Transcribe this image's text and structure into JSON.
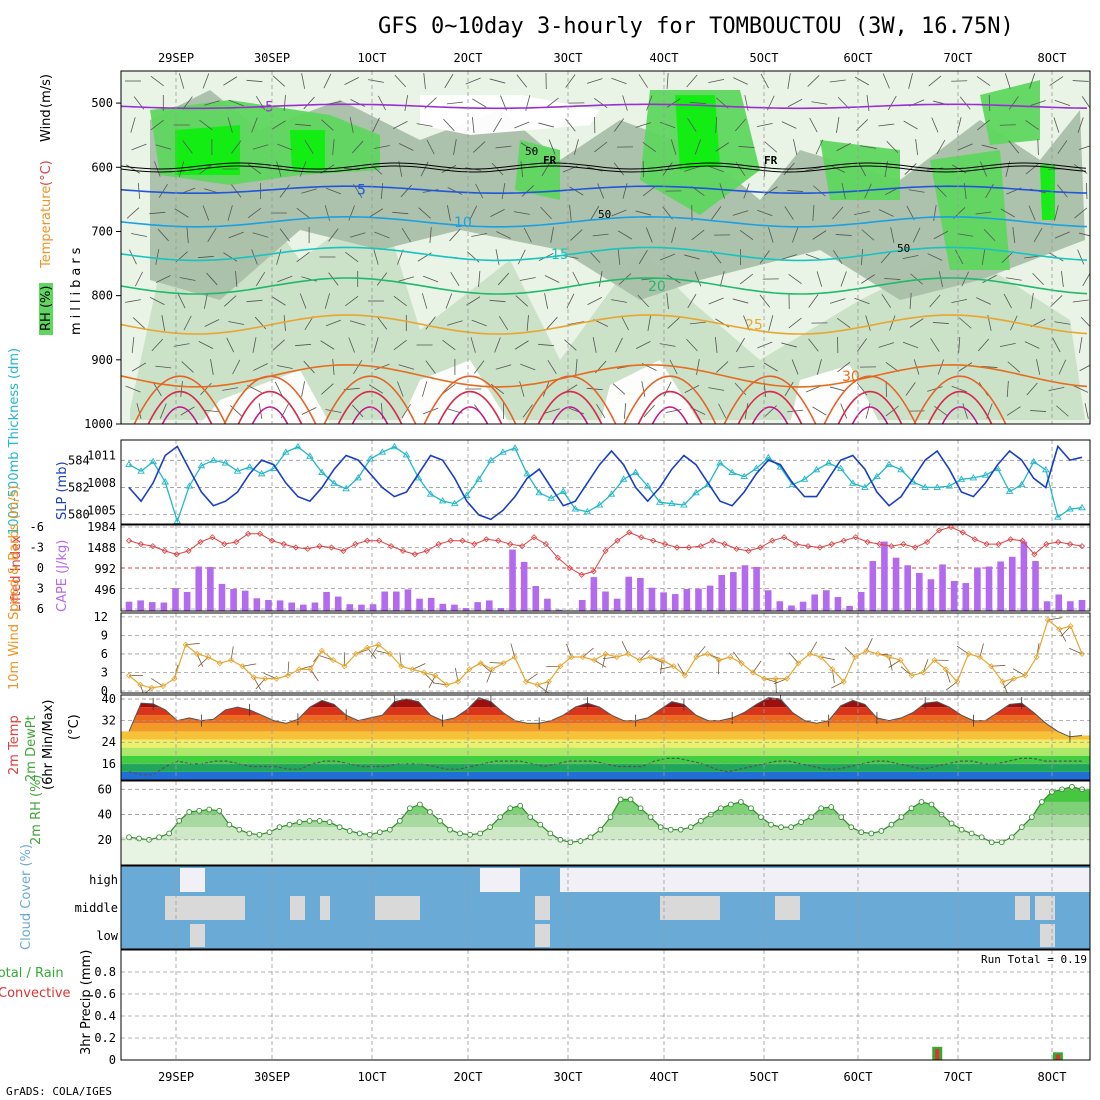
{
  "title": "GFS 0~10day 3-hourly for TOMBOUCTOU (3W, 16.75N)",
  "credit": "GrADS: COLA/IGES",
  "dates": [
    "29SEP",
    "30SEP",
    "1OCT",
    "2OCT",
    "3OCT",
    "4OCT",
    "5OCT",
    "6OCT",
    "7OCT",
    "8OCT"
  ],
  "date_labels_display": [
    "29SEP",
    "30SEP",
    "1OCT",
    "2OCT",
    "3OCT",
    "4OCT",
    "5OCT",
    "6OCT",
    "7OCT",
    "8OCT"
  ],
  "colors": {
    "rh_light": "#e9f4e6",
    "rh_mid": "#c9dfc6",
    "rh_grey": "#a9bfa9",
    "rh_green": "#5fd65f",
    "rh_bright": "#10ee10",
    "cyan": "#22b8c8",
    "blue": "#1a3fc7",
    "purple": "#b36aef",
    "red": "#e04040",
    "orange": "#ee9522",
    "green_rh": "#41a63a",
    "cloud_bg": "#6aaad6",
    "cloud_white": "#f2f0f7",
    "cloud_light": "#d9d9d9",
    "precip_green": "#33aa33",
    "precip_red": "#e03030"
  },
  "chart_data": [
    {
      "name": "upper-air",
      "type": "contour",
      "ylabel_parts": [
        "RH (%)",
        "Temperature",
        "(°C)",
        "Wind",
        "(m/s)"
      ],
      "axis_label": "millibars",
      "ylim": [
        1000,
        450
      ],
      "yticks": [
        500,
        600,
        700,
        800,
        900,
        1000
      ],
      "isotherms": [
        {
          "label": "-5",
          "level": 505
        },
        {
          "label": "5",
          "level": 635
        },
        {
          "label": "10",
          "level": 685
        },
        {
          "label": "15",
          "level": 735
        },
        {
          "label": "20",
          "level": 785
        },
        {
          "label": "25",
          "level": 845
        },
        {
          "label": "30",
          "level": 925
        }
      ],
      "freezing_level_label": "FR",
      "freezing_level_mb": 598,
      "rh_labels": [
        "50",
        "50",
        "50"
      ]
    },
    {
      "name": "thickness-slp",
      "type": "line",
      "ylabel_left": "1000-500mb Thickness (dm)",
      "ylabel_right": "SLP (mb)",
      "left_ticks": [
        580,
        582,
        584
      ],
      "right_ticks": [
        1005,
        1008,
        1011
      ],
      "left_ylim": [
        579.3,
        585.5
      ],
      "right_ylim": [
        1003.5,
        1012.7
      ],
      "series": [
        {
          "name": "Thickness",
          "values": [
            583.7,
            583.2,
            583.9,
            582.4,
            579.5,
            582.1,
            583.6,
            584.0,
            583.8,
            583.2,
            583.5,
            583.0,
            583.4,
            584.6,
            585.0,
            584.3,
            583.1,
            582.3,
            581.9,
            582.7,
            584.1,
            584.6,
            585.0,
            584.4,
            582.7,
            581.5,
            581.0,
            580.8,
            581.4,
            582.6,
            584.0,
            584.6,
            584.9,
            583.0,
            581.6,
            581.2,
            581.7,
            580.4,
            580.2,
            580.7,
            581.5,
            582.6,
            583.1,
            582.1,
            580.9,
            580.8,
            580.7,
            581.6,
            582.2,
            583.8,
            583.1,
            582.8,
            583.4,
            584.2,
            583.5,
            582.2,
            582.6,
            583.3,
            583.8,
            583.4,
            582.3,
            582.0,
            582.8,
            583.7,
            583.3,
            582.4,
            582.0,
            582.0,
            582.1,
            582.6,
            582.7,
            582.9,
            583.4,
            581.7,
            582.2,
            583.9,
            583.3,
            579.8,
            580.4,
            580.5
          ]
        },
        {
          "name": "SLP",
          "values": [
            1007.5,
            1006.0,
            1008.0,
            1011.0,
            1012.0,
            1009.5,
            1007.0,
            1005.5,
            1006.0,
            1007.0,
            1009.0,
            1010.5,
            1010.0,
            1008.0,
            1006.5,
            1006.0,
            1007.5,
            1009.5,
            1011.0,
            1010.5,
            1009.0,
            1007.5,
            1006.5,
            1007.0,
            1009.0,
            1011.0,
            1010.5,
            1008.5,
            1006.0,
            1004.5,
            1004.0,
            1005.0,
            1006.5,
            1008.5,
            1009.5,
            1007.5,
            1005.5,
            1006.0,
            1008.0,
            1010.0,
            1011.5,
            1010.0,
            1007.5,
            1006.0,
            1007.5,
            1009.5,
            1011.0,
            1010.0,
            1008.0,
            1006.0,
            1005.5,
            1007.0,
            1009.0,
            1010.5,
            1010.0,
            1008.0,
            1006.5,
            1006.5,
            1008.5,
            1010.5,
            1011.0,
            1009.5,
            1007.0,
            1005.5,
            1006.5,
            1008.5,
            1010.5,
            1011.5,
            1009.5,
            1007.0,
            1006.5,
            1008.0,
            1010.0,
            1011.5,
            1010.5,
            1008.5,
            1007.5,
            1012.0,
            1010.5,
            1010.8
          ]
        }
      ]
    },
    {
      "name": "lifted-index-cape",
      "type": "line+bar",
      "ylabel_left": "Lifted Index",
      "ylabel_right": "CAPE (J/kg)",
      "left_ticks": [
        -6,
        -3,
        0,
        3,
        6
      ],
      "right_ticks": [
        496,
        992,
        1488,
        1984
      ],
      "left_ylim": [
        6,
        -6
      ],
      "right_ylim": [
        0,
        1984
      ],
      "series": [
        {
          "name": "Lifted Index",
          "values": [
            -4.0,
            -3.5,
            -3.2,
            -2.5,
            -2.0,
            -2.5,
            -3.8,
            -4.5,
            -3.5,
            -3.8,
            -5.0,
            -5.0,
            -4.0,
            -3.5,
            -3.0,
            -2.8,
            -3.2,
            -3.0,
            -2.5,
            -3.5,
            -4.0,
            -4.0,
            -3.2,
            -2.5,
            -2.0,
            -2.5,
            -3.5,
            -4.0,
            -4.0,
            -3.5,
            -4.2,
            -4.0,
            -3.5,
            -3.2,
            -4.5,
            -3.5,
            -1.5,
            0.0,
            1.0,
            0.5,
            -2.5,
            -4.0,
            -5.2,
            -4.5,
            -4.0,
            -3.5,
            -3.0,
            -3.0,
            -3.2,
            -4.0,
            -3.5,
            -2.8,
            -2.5,
            -3.0,
            -4.0,
            -4.5,
            -3.5,
            -3.2,
            -3.0,
            -3.5,
            -4.0,
            -4.5,
            -3.8,
            -3.5,
            -3.2,
            -3.5,
            -3.0,
            -3.8,
            -5.5,
            -6.0,
            -5.2,
            -4.2,
            -3.5,
            -3.5,
            -4.2,
            -4.0,
            -2.0,
            -3.5,
            -3.8,
            -3.5,
            -3.2
          ]
        },
        {
          "name": "CAPE",
          "values": [
            220,
            250,
            210,
            200,
            540,
            450,
            1050,
            1040,
            640,
            520,
            480,
            300,
            260,
            250,
            200,
            150,
            200,
            450,
            340,
            160,
            150,
            160,
            460,
            460,
            510,
            290,
            310,
            170,
            150,
            70,
            210,
            250,
            70,
            1450,
            1160,
            590,
            290,
            30,
            10,
            260,
            800,
            460,
            290,
            810,
            780,
            550,
            440,
            400,
            520,
            530,
            600,
            850,
            920,
            1080,
            1040,
            490,
            230,
            130,
            220,
            390,
            490,
            330,
            120,
            450,
            1180,
            1640,
            1260,
            1080,
            900,
            750,
            1100,
            710,
            660,
            1030,
            1050,
            1170,
            1280,
            1640,
            1180,
            230,
            390,
            230,
            260
          ]
        }
      ]
    },
    {
      "name": "wind-10m",
      "type": "line",
      "ylabel": "10m Wind Speed & Barbs (m/s)",
      "ticks": [
        0,
        3,
        6,
        9,
        12
      ],
      "ylim": [
        0,
        12.3
      ],
      "values": [
        2.5,
        1.0,
        0.5,
        0.8,
        2.0,
        7.5,
        6.0,
        5.5,
        4.5,
        5.0,
        4.0,
        2.2,
        2.0,
        2.0,
        2.5,
        3.5,
        3.5,
        6.5,
        5.0,
        4.0,
        6.0,
        7.0,
        7.5,
        6.0,
        4.0,
        3.5,
        3.0,
        2.5,
        1.0,
        1.5,
        3.5,
        4.5,
        3.5,
        4.5,
        5.5,
        1.5,
        1.0,
        1.5,
        4.0,
        5.5,
        5.5,
        5.0,
        6.0,
        5.5,
        6.0,
        5.0,
        5.5,
        5.0,
        4.0,
        2.5,
        5.5,
        6.0,
        5.0,
        5.5,
        4.5,
        3.0,
        2.0,
        2.0,
        2.0,
        4.5,
        6.0,
        5.5,
        3.5,
        1.5,
        5.5,
        6.5,
        6.0,
        5.5,
        5.0,
        2.5,
        3.0,
        5.0,
        3.5,
        1.5,
        6.0,
        5.5,
        4.0,
        1.5,
        2.0,
        2.5,
        5.5,
        11.5,
        10.0,
        10.5,
        6.0
      ]
    },
    {
      "name": "temperature-dewpoint",
      "type": "area",
      "ylabel_parts": [
        "2m Temp",
        "2m DewPt",
        "(6hr Min/Max)",
        "(°C)"
      ],
      "ticks": [
        16,
        24,
        32,
        40
      ],
      "ylim": [
        10,
        41.5
      ],
      "temp": [
        28,
        38.5,
        38.2,
        36,
        32,
        33,
        32,
        32.5,
        36,
        37,
        36,
        34,
        32,
        31,
        32.5,
        37,
        39.5,
        38,
        34,
        32,
        33,
        34,
        39,
        40,
        39,
        34,
        32,
        33,
        36,
        40.5,
        39,
        35,
        32,
        31,
        31,
        32,
        34,
        37,
        38.5,
        37,
        34,
        32,
        32,
        33,
        36,
        39,
        38,
        34,
        32,
        32,
        33,
        35,
        38,
        40.5,
        40,
        35,
        32,
        31,
        32,
        37.5,
        39.5,
        38,
        33,
        32,
        33,
        35,
        38.5,
        39,
        37,
        34,
        32,
        32,
        35,
        38,
        38.5,
        35,
        31,
        28,
        26,
        26.5
      ],
      "dew": [
        13,
        12,
        12,
        15,
        17,
        16,
        16,
        17,
        17,
        16,
        15,
        15,
        15,
        14,
        14,
        16,
        17,
        17,
        16,
        15,
        15,
        15,
        16,
        16,
        16,
        15,
        14,
        14,
        15,
        16,
        17,
        17,
        17,
        16,
        15,
        16,
        17,
        17,
        17,
        16,
        15,
        15,
        15,
        17,
        18,
        18,
        17,
        16,
        14,
        13,
        14,
        15,
        16,
        17,
        17,
        16,
        15,
        14,
        14,
        15,
        16,
        17,
        17,
        16,
        15,
        14,
        15,
        16,
        17,
        17,
        16,
        16,
        17,
        18,
        18,
        17,
        17,
        17,
        17
      ]
    },
    {
      "name": "relative-humidity-2m",
      "type": "area",
      "ylabel": "2m RH (%)",
      "ticks": [
        20,
        40,
        60
      ],
      "ylim": [
        0,
        65
      ],
      "values": [
        22,
        21,
        20,
        22,
        25,
        35,
        42,
        43,
        44,
        43,
        32,
        28,
        25,
        24,
        26,
        30,
        32,
        34,
        35,
        35,
        34,
        30,
        27,
        25,
        24,
        26,
        28,
        35,
        45,
        48,
        42,
        35,
        28,
        25,
        24,
        25,
        30,
        38,
        45,
        47,
        38,
        32,
        25,
        20,
        18,
        19,
        22,
        28,
        38,
        52,
        52,
        45,
        38,
        30,
        28,
        28,
        30,
        35,
        40,
        45,
        48,
        50,
        45,
        38,
        32,
        30,
        30,
        34,
        38,
        45,
        46,
        38,
        30,
        26,
        25,
        27,
        32,
        38,
        45,
        50,
        48,
        40,
        33,
        28,
        25,
        22,
        18,
        18,
        22,
        30,
        38,
        50,
        58,
        60,
        62,
        60
      ]
    },
    {
      "name": "cloud-cover",
      "type": "heatmap",
      "ylabel": "Cloud Cover (%)",
      "levels": [
        "high",
        "middle",
        "low"
      ]
    },
    {
      "name": "precipitation",
      "type": "bar",
      "ylabel_parts": [
        "Total / Rain",
        "Convective",
        "3hr Precip (mm)"
      ],
      "ticks": [
        0,
        0.2,
        0.4,
        0.6,
        0.8
      ],
      "ylim": [
        0,
        1.0
      ],
      "run_total_label": "Run Total = 0.19",
      "events": [
        {
          "index": 67,
          "total": 0.12,
          "convective": 0.1
        },
        {
          "index": 77,
          "total": 0.07,
          "convective": 0.05
        }
      ]
    }
  ]
}
